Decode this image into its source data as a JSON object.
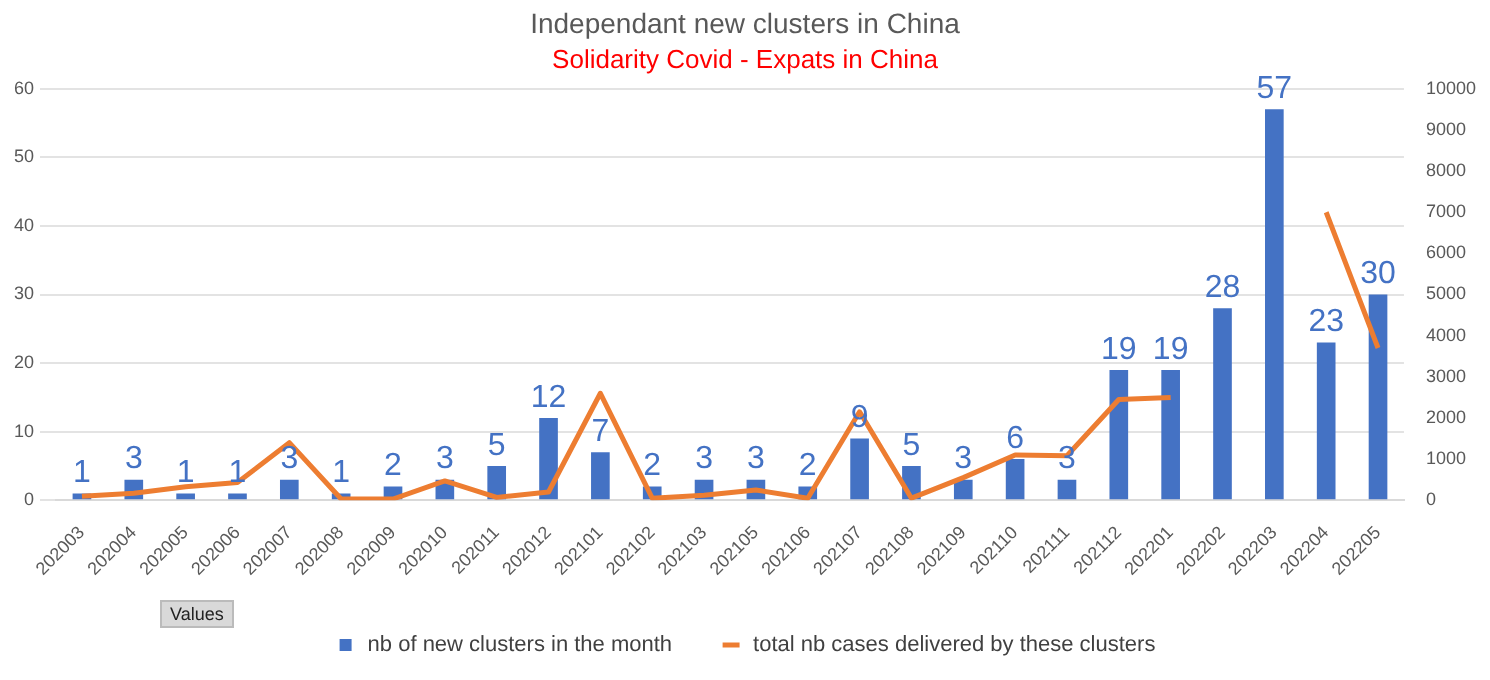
{
  "chart_data": {
    "type": "bar",
    "title": "Independant new clusters in China",
    "subtitle": "Solidarity Covid - Expats in China",
    "categories": [
      "202003",
      "202004",
      "202005",
      "202006",
      "202007",
      "202008",
      "202009",
      "202010",
      "202011",
      "202012",
      "202101",
      "202102",
      "202103",
      "202105",
      "202106",
      "202107",
      "202108",
      "202109",
      "202110",
      "202111",
      "202112",
      "202201",
      "202202",
      "202203",
      "202204",
      "202205"
    ],
    "series": [
      {
        "name": "nb of new clusters in the month",
        "color": "#4472c4",
        "values": [
          1,
          3,
          1,
          1,
          3,
          1,
          2,
          3,
          5,
          12,
          7,
          2,
          3,
          3,
          2,
          9,
          5,
          3,
          6,
          3,
          19,
          19,
          28,
          57,
          23,
          30
        ],
        "value_labels": [
          "1",
          "3",
          "1",
          "1",
          "3",
          "1",
          "2",
          "3",
          "5",
          "12",
          "7",
          "2",
          "3",
          "3",
          "2",
          "9",
          "5",
          "3",
          "6",
          "3",
          "19",
          "19",
          "28",
          "57",
          "23",
          "30"
        ]
      },
      {
        "name": "total nb cases delivered by these clusters",
        "type": "line",
        "axis": "y2",
        "color": "#ed7d31",
        "values": [
          100,
          170,
          330,
          430,
          1400,
          30,
          30,
          470,
          70,
          200,
          2600,
          50,
          120,
          250,
          50,
          2150,
          50,
          550,
          1100,
          1080,
          2450,
          2500,
          null,
          null,
          7000,
          3700
        ]
      }
    ],
    "ylim": [
      0,
      60
    ],
    "yticks": [
      0,
      10,
      20,
      30,
      40,
      50,
      60
    ],
    "y2lim": [
      0,
      10000
    ],
    "y2ticks": [
      0,
      1000,
      2000,
      3000,
      4000,
      5000,
      6000,
      7000,
      8000,
      9000,
      10000
    ],
    "grid": "y",
    "legend": "bottom",
    "marker": "none",
    "annotations": [
      "Values"
    ]
  }
}
